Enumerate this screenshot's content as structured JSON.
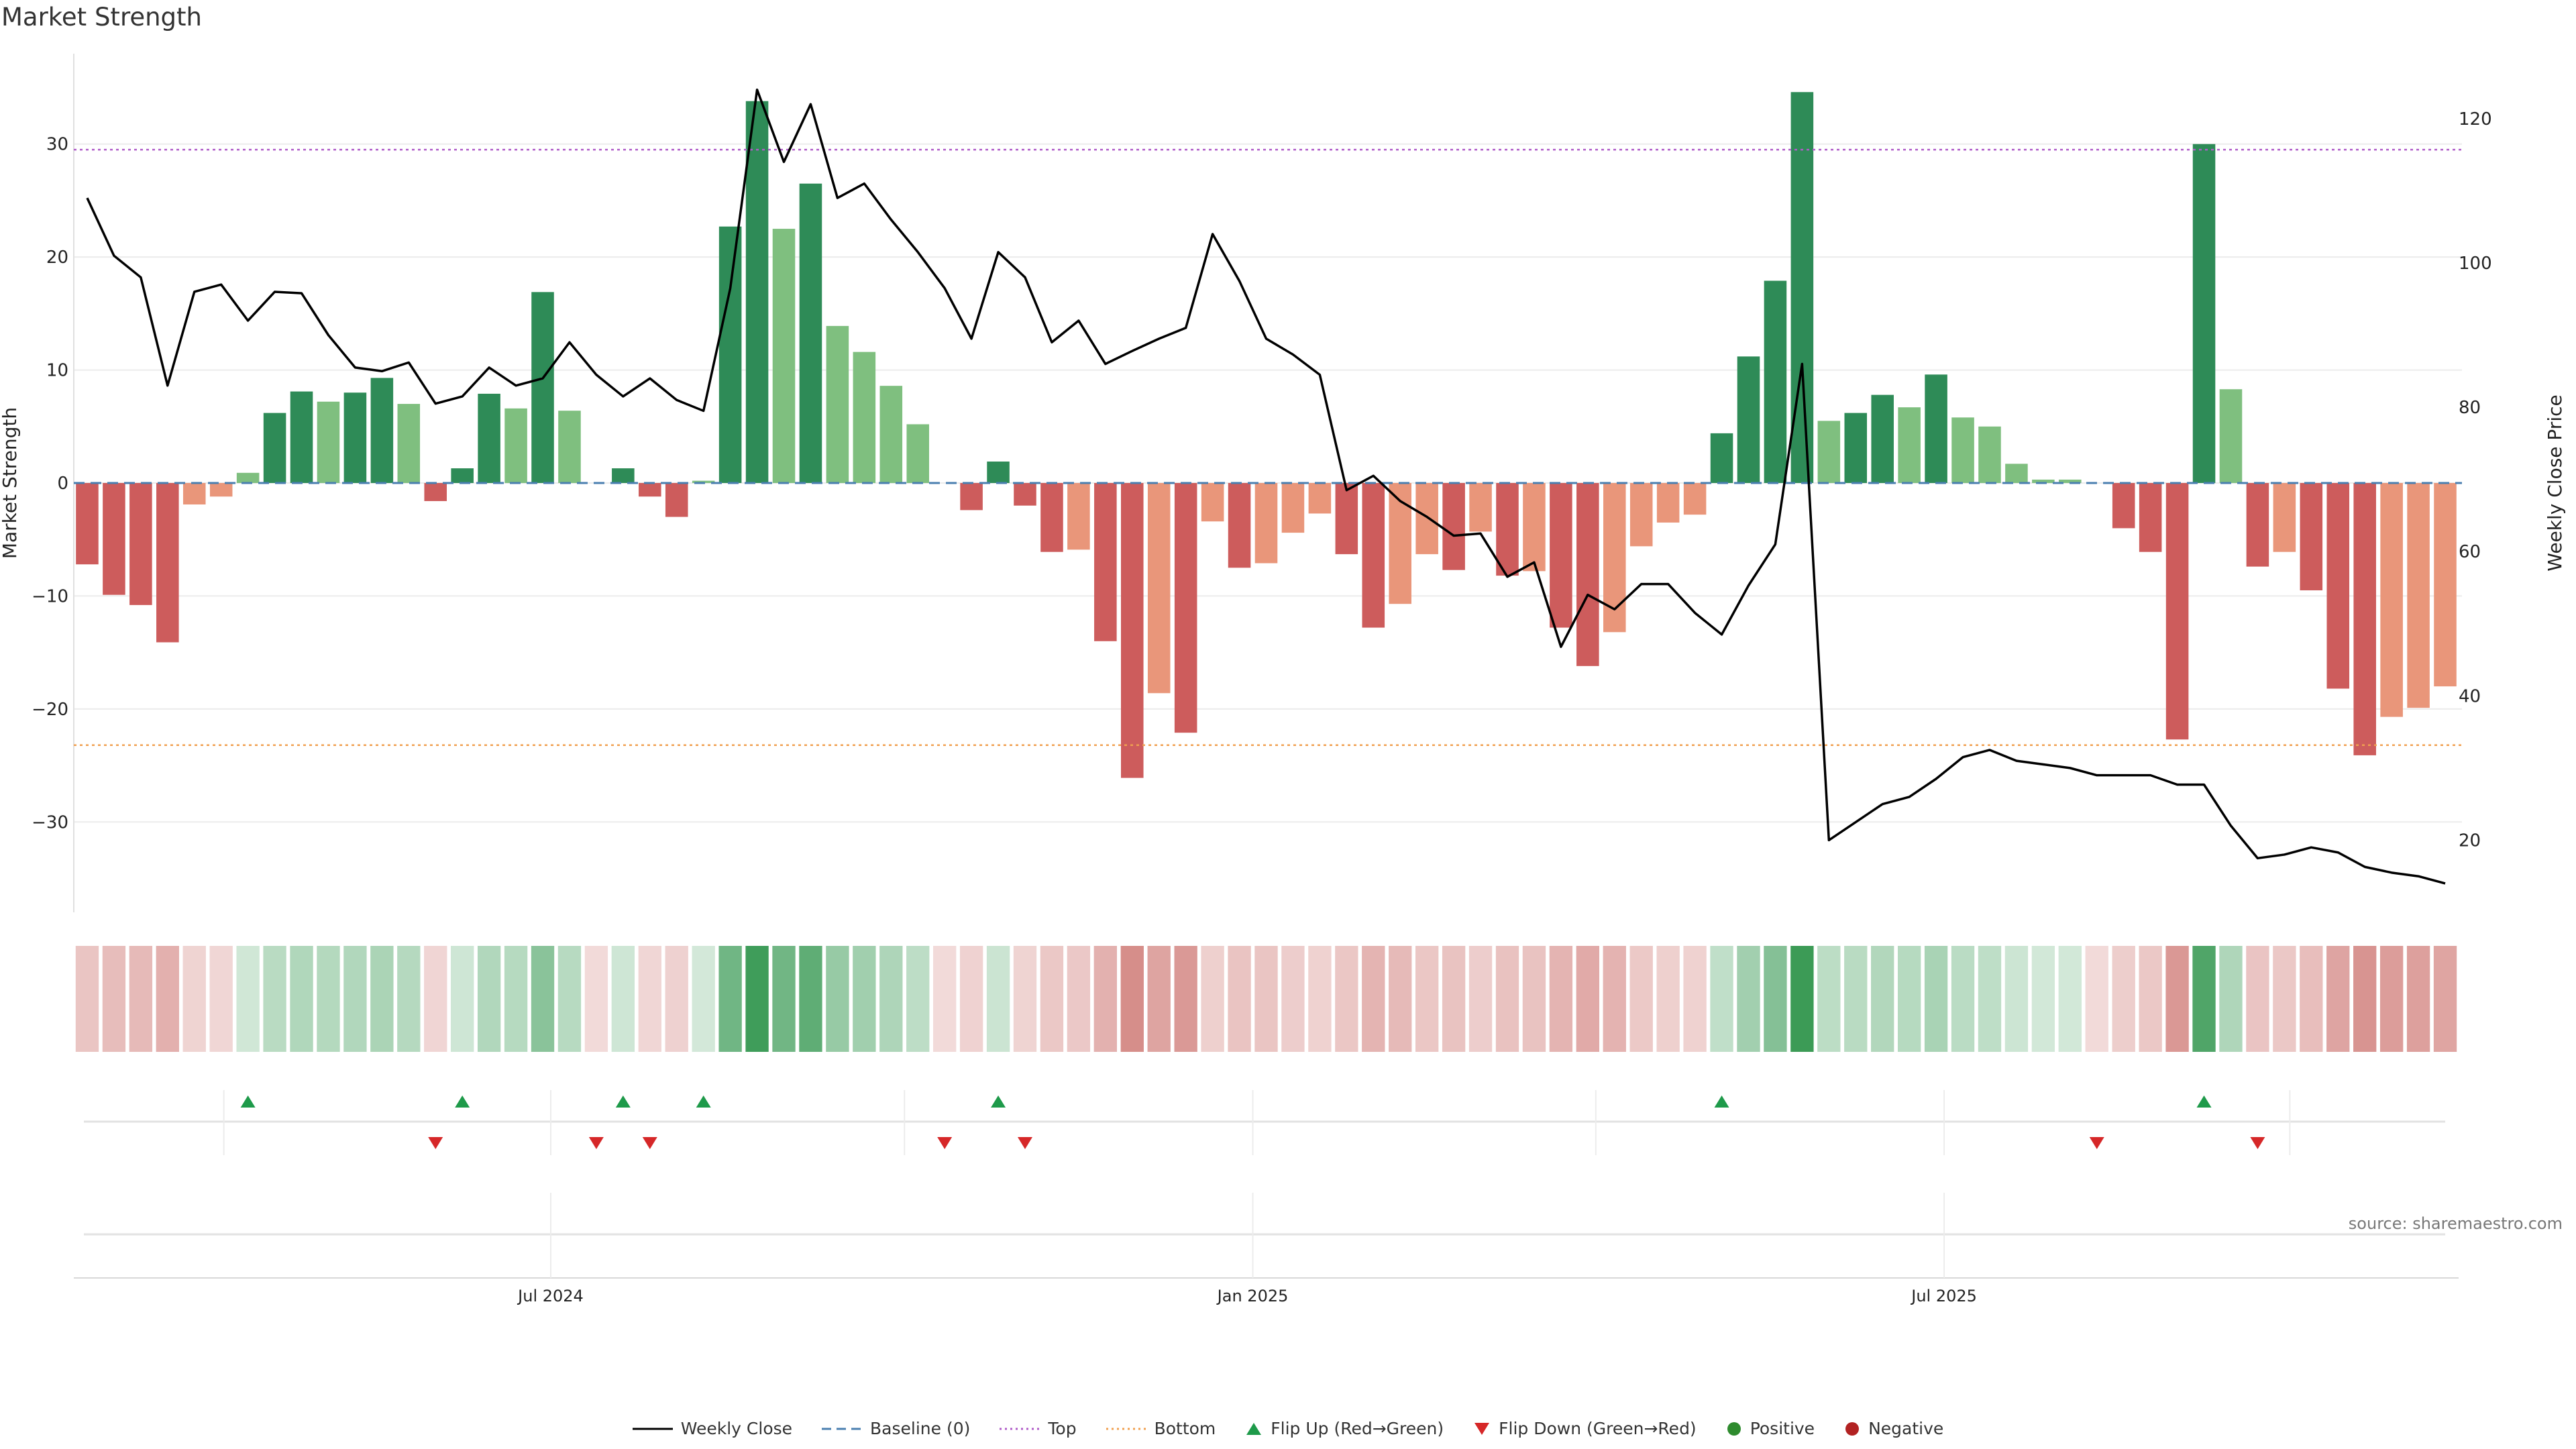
{
  "chart_data": {
    "type": "bar",
    "title": "Market Strength",
    "source": "source: sharemaestro.com",
    "ylabel": "Market Strength",
    "y2label": "Weekly Close Price",
    "ylim": [
      -38,
      38
    ],
    "y2lim": [
      10,
      129
    ],
    "yticks": [
      30,
      20,
      10,
      0,
      -10,
      -20,
      -30
    ],
    "y2ticks": [
      120,
      100,
      80,
      60,
      40,
      20
    ],
    "top_threshold": 29.5,
    "bottom_threshold": -23.2,
    "xaxis": {
      "start_week_index": 0,
      "tick_labels": [
        "Jul 2024",
        "Jan 2025",
        "Jul 2025"
      ],
      "tick_week_positions": [
        17.3,
        43.5,
        69.3
      ]
    },
    "market_strength": [
      -7.2,
      -9.9,
      -10.8,
      -14.1,
      -1.9,
      -1.2,
      0.9,
      6.2,
      8.1,
      7.2,
      8.0,
      9.3,
      7.0,
      -1.6,
      1.3,
      7.9,
      6.6,
      16.9,
      6.4,
      0,
      1.3,
      -1.2,
      -3.0,
      0.2,
      22.7,
      33.8,
      22.5,
      26.5,
      13.9,
      11.6,
      8.6,
      5.2,
      0,
      -2.4,
      1.9,
      -2.0,
      -6.1,
      -5.9,
      -14.0,
      -26.1,
      -18.6,
      -22.1,
      -3.4,
      -7.5,
      -7.1,
      -4.4,
      -2.7,
      -6.3,
      -12.8,
      -10.7,
      -6.3,
      -7.7,
      -4.3,
      -8.2,
      -7.8,
      -12.8,
      -16.2,
      -13.2,
      -5.6,
      -3.5,
      -2.8,
      4.4,
      11.2,
      17.9,
      34.6,
      5.5,
      6.2,
      7.8,
      6.7,
      9.6,
      5.8,
      5.0,
      1.7,
      0.3,
      0.3,
      0,
      -4.0,
      -6.1,
      -22.7,
      30.0,
      8.3,
      -7.4,
      -6.1,
      -9.5,
      -18.2,
      -24.1,
      -20.7,
      -19.9,
      -18.0
    ],
    "weekly_close": [
      109,
      101,
      98,
      83,
      96,
      97,
      92,
      96,
      95.8,
      90,
      85.5,
      85,
      86.2,
      80.5,
      81.5,
      85.5,
      83,
      84,
      89,
      84.5,
      81.5,
      84,
      81,
      79.5,
      96.5,
      124,
      114,
      122,
      109,
      111,
      106,
      101.5,
      96.5,
      89.5,
      101.5,
      98,
      89,
      92,
      86,
      87.8,
      89.5,
      91,
      104,
      97.5,
      89.5,
      87.3,
      84.5,
      68.5,
      70.5,
      67,
      64.8,
      62.2,
      62.5,
      56.5,
      58.5,
      46.8,
      54,
      52,
      55.5,
      55.5,
      51.5,
      48.5,
      55.3,
      61,
      86,
      20,
      22.5,
      25,
      26,
      28.5,
      31.5,
      32.5,
      31,
      30.5,
      30,
      29,
      29,
      29,
      27.7,
      27.7,
      22,
      17.5,
      18,
      19,
      18.3,
      16.3,
      15.5,
      15,
      14
    ],
    "direction": [
      -1,
      -1,
      -1,
      -1,
      -1,
      -1,
      1,
      1,
      1,
      1,
      1,
      1,
      1,
      -1,
      1,
      1,
      1,
      1,
      1,
      -1,
      1,
      -1,
      -1,
      1,
      1,
      1,
      1,
      1,
      1,
      1,
      1,
      1,
      -1,
      -1,
      1,
      -1,
      -1,
      -1,
      -1,
      -1,
      -1,
      -1,
      -1,
      -1,
      -1,
      -1,
      -1,
      -1,
      -1,
      -1,
      -1,
      -1,
      -1,
      -1,
      -1,
      -1,
      -1,
      -1,
      -1,
      -1,
      -1,
      1,
      1,
      1,
      1,
      1,
      1,
      1,
      1,
      1,
      1,
      1,
      1,
      1,
      1,
      -1,
      -1,
      -1,
      -1,
      1,
      1,
      -1,
      -1,
      -1,
      -1,
      -1,
      -1,
      -1,
      -1
    ],
    "flip_up_weeks": [
      6,
      14,
      20,
      23,
      34,
      61,
      79
    ],
    "flip_down_weeks": [
      13,
      19,
      21,
      32,
      35,
      75,
      81
    ]
  },
  "legend": {
    "weekly_close": "Weekly Close",
    "baseline": "Baseline (0)",
    "top": "Top",
    "bottom": "Bottom",
    "flip_up": "Flip Up (Red→Green)",
    "flip_down": "Flip Down (Green→Red)",
    "positive": "Positive",
    "negative": "Negative"
  },
  "colors": {
    "pos_strong": "#2e8b57",
    "pos_light": "#7fbf7f",
    "neg_strong": "#cd5c5c",
    "neg_light": "#e9967a",
    "close_line": "#000000",
    "baseline": "#4a7fb0",
    "top": "#b05cc8",
    "bottom": "#f0a050",
    "flip_up": "#1e9a4a",
    "flip_down": "#d62728",
    "positive_dot": "#2e8b2e",
    "negative_dot": "#b22222"
  }
}
